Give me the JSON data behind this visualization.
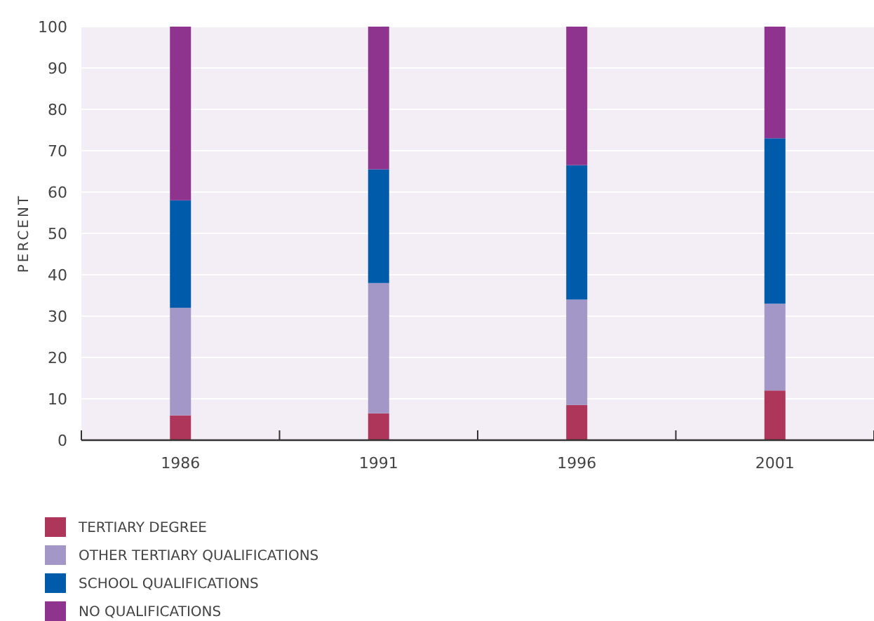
{
  "chart_data": {
    "type": "bar",
    "stacked": true,
    "ylabel": "PERCENT",
    "categories": [
      "1986",
      "1991",
      "1996",
      "2001"
    ],
    "series": [
      {
        "name": "TERTIARY DEGREE",
        "color": "#ae365a",
        "values": [
          6,
          6.5,
          8.5,
          12
        ]
      },
      {
        "name": "OTHER TERTIARY QUALIFICATIONS",
        "color": "#a397c8",
        "values": [
          26,
          31.5,
          25.5,
          21
        ]
      },
      {
        "name": "SCHOOL QUALIFICATIONS",
        "color": "#005cab",
        "values": [
          26,
          27.5,
          32.5,
          40
        ]
      },
      {
        "name": "NO QUALIFICATIONS",
        "color": "#8e348f",
        "values": [
          42,
          34.5,
          33.5,
          27
        ]
      }
    ],
    "ylim": [
      0,
      100
    ],
    "yticks": [
      0,
      10,
      20,
      30,
      40,
      50,
      60,
      70,
      80,
      90,
      100
    ],
    "grid": "y",
    "legend": "bottom left"
  }
}
